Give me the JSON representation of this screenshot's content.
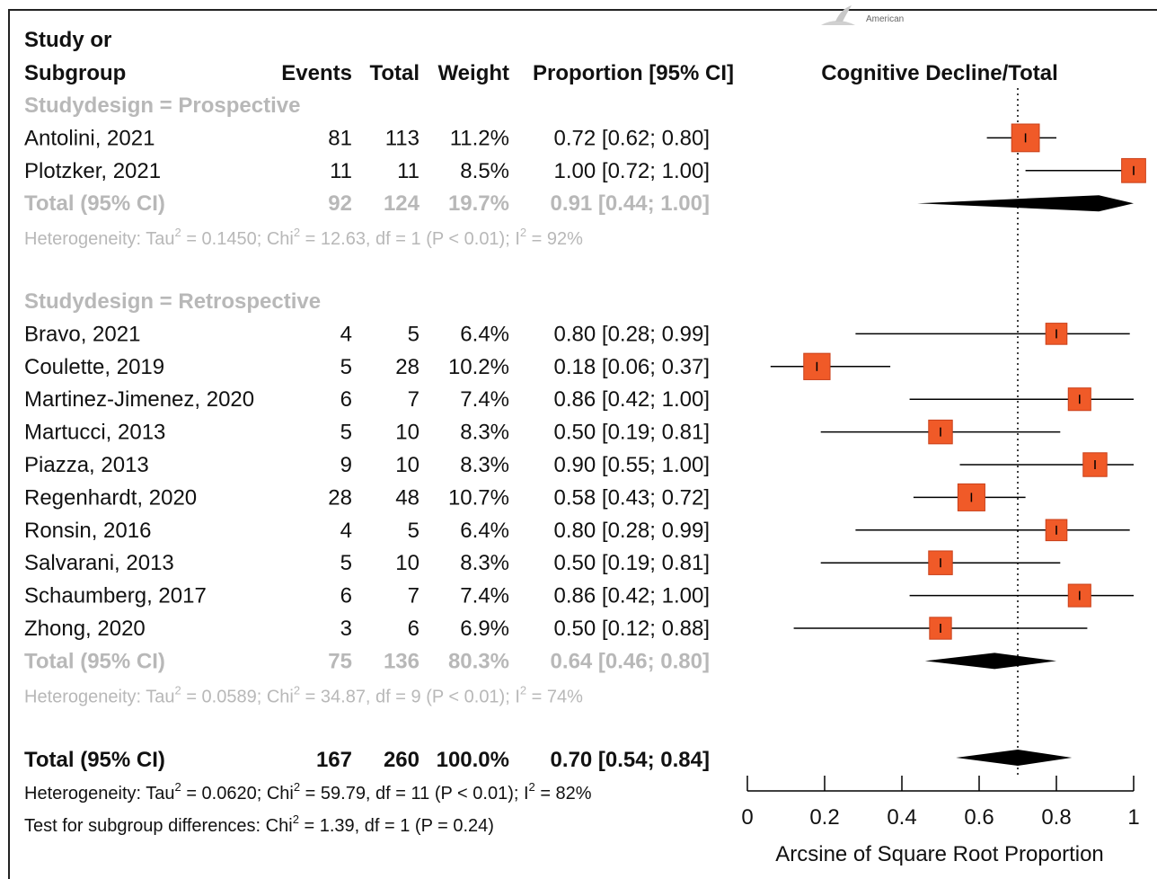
{
  "logo_text": "American",
  "headers": {
    "study_line1": "Study or",
    "study_line2": "Subgroup",
    "events": "Events",
    "total": "Total",
    "weight": "Weight",
    "proportion": "Proportion [95% CI]",
    "plot_title": "Cognitive Decline/Total"
  },
  "groups": [
    {
      "label": "Studydesign = Prospective",
      "studies": [
        {
          "name": "Antolini, 2021",
          "events": "81",
          "total": "113",
          "weight": "11.2%",
          "ci_text": "0.72 [0.62; 0.80]",
          "est": 0.72,
          "lo": 0.62,
          "hi": 0.8,
          "w": 11.2
        },
        {
          "name": "Plotzker, 2021",
          "events": "11",
          "total": "11",
          "weight": "8.5%",
          "ci_text": "1.00 [0.72; 1.00]",
          "est": 1.0,
          "lo": 0.72,
          "hi": 1.0,
          "w": 8.5
        }
      ],
      "total": {
        "name": "Total (95% CI)",
        "events": "92",
        "total": "124",
        "weight": "19.7%",
        "ci_text": "0.91 [0.44; 1.00]",
        "est": 0.91,
        "lo": 0.44,
        "hi": 1.0
      },
      "heterogeneity": {
        "pre": "Heterogeneity: Tau",
        "tau2": "= 0.1450; Chi",
        "chi2": "= 12.63, df = 1 (P < 0.01); I",
        "i2": "= 92%"
      }
    },
    {
      "label": "Studydesign = Retrospective",
      "studies": [
        {
          "name": "Bravo, 2021",
          "events": "4",
          "total": "5",
          "weight": "6.4%",
          "ci_text": "0.80 [0.28; 0.99]",
          "est": 0.8,
          "lo": 0.28,
          "hi": 0.99,
          "w": 6.4
        },
        {
          "name": "Coulette, 2019",
          "events": "5",
          "total": "28",
          "weight": "10.2%",
          "ci_text": "0.18 [0.06; 0.37]",
          "est": 0.18,
          "lo": 0.06,
          "hi": 0.37,
          "w": 10.2
        },
        {
          "name": "Martinez-Jimenez, 2020",
          "events": "6",
          "total": "7",
          "weight": "7.4%",
          "ci_text": "0.86 [0.42; 1.00]",
          "est": 0.86,
          "lo": 0.42,
          "hi": 1.0,
          "w": 7.4
        },
        {
          "name": "Martucci, 2013",
          "events": "5",
          "total": "10",
          "weight": "8.3%",
          "ci_text": "0.50 [0.19; 0.81]",
          "est": 0.5,
          "lo": 0.19,
          "hi": 0.81,
          "w": 8.3
        },
        {
          "name": "Piazza, 2013",
          "events": "9",
          "total": "10",
          "weight": "8.3%",
          "ci_text": "0.90 [0.55; 1.00]",
          "est": 0.9,
          "lo": 0.55,
          "hi": 1.0,
          "w": 8.3
        },
        {
          "name": "Regenhardt, 2020",
          "events": "28",
          "total": "48",
          "weight": "10.7%",
          "ci_text": "0.58 [0.43; 0.72]",
          "est": 0.58,
          "lo": 0.43,
          "hi": 0.72,
          "w": 10.7
        },
        {
          "name": "Ronsin, 2016",
          "events": "4",
          "total": "5",
          "weight": "6.4%",
          "ci_text": "0.80 [0.28; 0.99]",
          "est": 0.8,
          "lo": 0.28,
          "hi": 0.99,
          "w": 6.4
        },
        {
          "name": "Salvarani, 2013",
          "events": "5",
          "total": "10",
          "weight": "8.3%",
          "ci_text": "0.50 [0.19; 0.81]",
          "est": 0.5,
          "lo": 0.19,
          "hi": 0.81,
          "w": 8.3
        },
        {
          "name": "Schaumberg, 2017",
          "events": "6",
          "total": "7",
          "weight": "7.4%",
          "ci_text": "0.86 [0.42; 1.00]",
          "est": 0.86,
          "lo": 0.42,
          "hi": 1.0,
          "w": 7.4
        },
        {
          "name": "Zhong, 2020",
          "events": "3",
          "total": "6",
          "weight": "6.9%",
          "ci_text": "0.50 [0.12; 0.88]",
          "est": 0.5,
          "lo": 0.12,
          "hi": 0.88,
          "w": 6.9
        }
      ],
      "total": {
        "name": "Total (95% CI)",
        "events": "75",
        "total": "136",
        "weight": "80.3%",
        "ci_text": "0.64 [0.46; 0.80]",
        "est": 0.64,
        "lo": 0.46,
        "hi": 0.8
      },
      "heterogeneity": {
        "pre": "Heterogeneity: Tau",
        "tau2": "= 0.0589; Chi",
        "chi2": "= 34.87, df = 9 (P < 0.01); I",
        "i2": "= 74%"
      }
    }
  ],
  "overall": {
    "total": {
      "name": "Total (95% CI)",
      "events": "167",
      "total": "260",
      "weight": "100.0%",
      "ci_text": "0.70 [0.54; 0.84]",
      "est": 0.7,
      "lo": 0.54,
      "hi": 0.84
    },
    "heterogeneity": {
      "pre": "Heterogeneity: Tau",
      "tau2": "= 0.0620; Chi",
      "chi2": "= 59.79, df = 11 (P < 0.01); I",
      "i2": "= 82%"
    },
    "subgroup_test": {
      "pre": "Test for subgroup differences: Chi",
      "post": "= 1.39, df = 1 (P = 0.24)"
    }
  },
  "chart_data": {
    "type": "forest",
    "xlabel": "Arcsine of Square Root Proportion",
    "xlim": [
      0,
      1
    ],
    "xticks": [
      "0",
      "0.2",
      "0.4",
      "0.6",
      "0.8",
      "1"
    ],
    "reference_line": 0.7,
    "colors": {
      "marker": "#f05a28",
      "marker_border": "#c9401a",
      "diamond": "#000000",
      "group_text": "#b8b8b8"
    }
  }
}
